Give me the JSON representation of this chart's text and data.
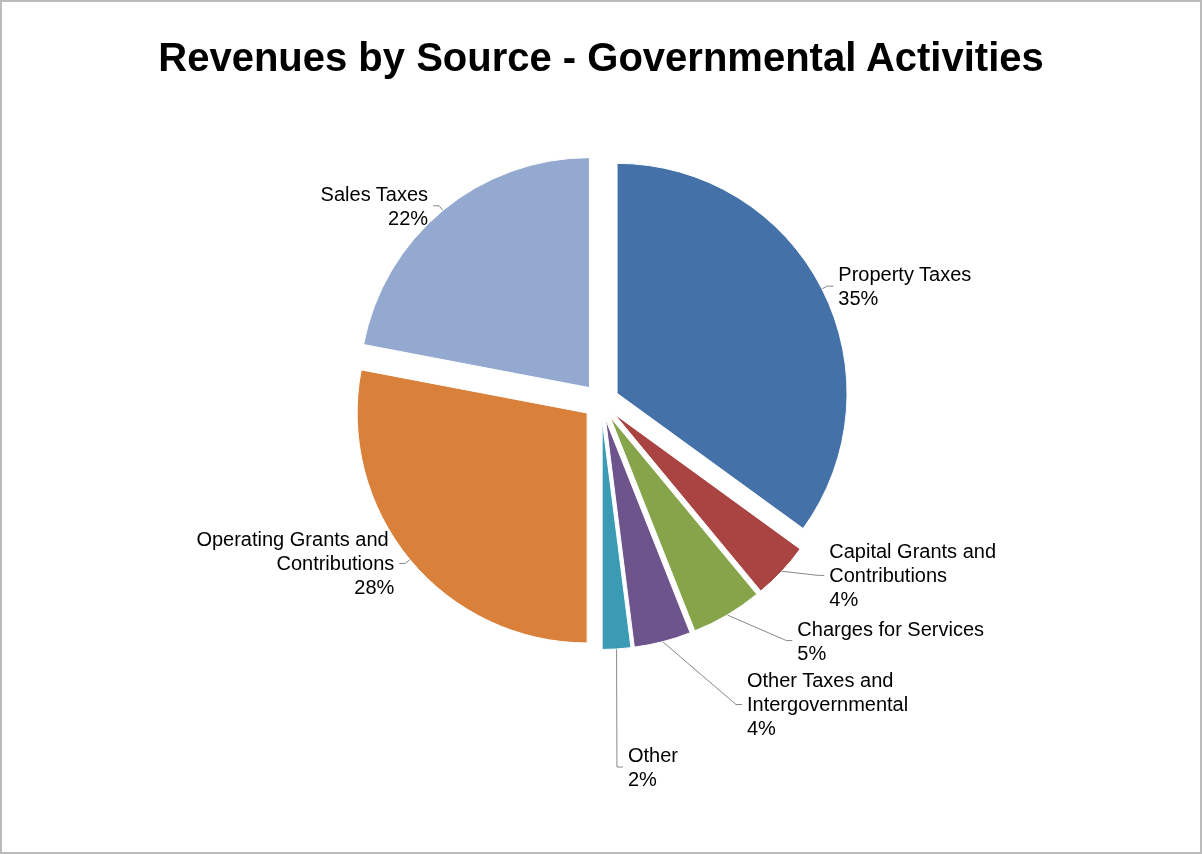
{
  "chart_data": {
    "type": "pie",
    "title": "Revenues by Source - Governmental Activities",
    "categories": [
      "Property Taxes",
      "Capital Grants and Contributions",
      "Charges for Services",
      "Other Taxes and Intergovernmental",
      "Other",
      "Operating Grants and Contributions",
      "Sales Taxes"
    ],
    "values": [
      35,
      4,
      5,
      4,
      2,
      28,
      22
    ],
    "value_labels": [
      "35%",
      "4%",
      "5%",
      "4%",
      "2%",
      "28%",
      "22%"
    ],
    "colors": [
      "#4472a8",
      "#a94442",
      "#86a44a",
      "#6e548d",
      "#3b9ab4",
      "#d9813b",
      "#93a9cf"
    ]
  }
}
